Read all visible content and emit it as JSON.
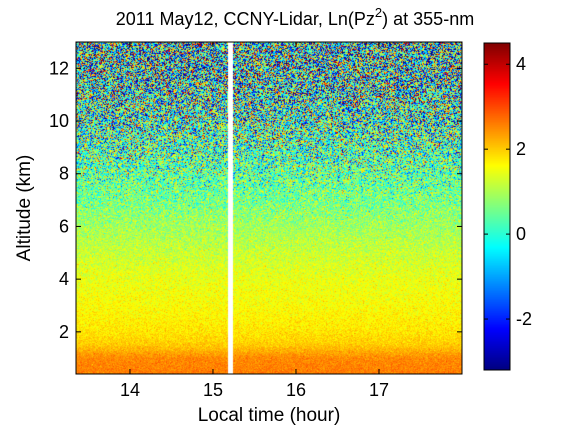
{
  "chart_data": {
    "type": "heatmap",
    "title": {
      "prefix": "2011 May12, CCNY-Lidar, Ln(Pz",
      "superscript": "2",
      "suffix": ") at 355-nm"
    },
    "xlabel": "Local time (hour)",
    "ylabel": "Altitude (km)",
    "xlim": [
      13.35,
      18.0
    ],
    "ylim": [
      0.4,
      13.0
    ],
    "x_ticks": [
      14,
      15,
      16,
      17
    ],
    "x_tick_labels": [
      "14",
      "15",
      "16",
      "17"
    ],
    "y_ticks": [
      2,
      4,
      6,
      8,
      10,
      12
    ],
    "y_tick_labels": [
      "2",
      "4",
      "6",
      "8",
      "10",
      "12"
    ],
    "data_gap": [
      15.17,
      15.24
    ],
    "colorbar": {
      "colormap": "jet",
      "range": [
        -3.2,
        4.5
      ],
      "ticks": [
        -2,
        0,
        2,
        4
      ],
      "tick_labels": [
        "-2",
        "0",
        "2",
        "4"
      ]
    },
    "profile": {
      "altitude_km": [
        0.4,
        1.0,
        1.5,
        2.0,
        3.0,
        4.0,
        5.0,
        6.0,
        7.0,
        8.0,
        9.0,
        10.0,
        11.0,
        12.0,
        13.0
      ],
      "mean_value": [
        2.6,
        2.5,
        2.0,
        1.8,
        1.6,
        1.45,
        1.2,
        0.9,
        0.6,
        0.4,
        0.25,
        0.15,
        0.1,
        0.05,
        0.0
      ],
      "noise_std": [
        0.15,
        0.15,
        0.15,
        0.18,
        0.2,
        0.22,
        0.28,
        0.35,
        0.6,
        1.0,
        1.4,
        1.8,
        2.1,
        2.3,
        2.4
      ]
    }
  }
}
